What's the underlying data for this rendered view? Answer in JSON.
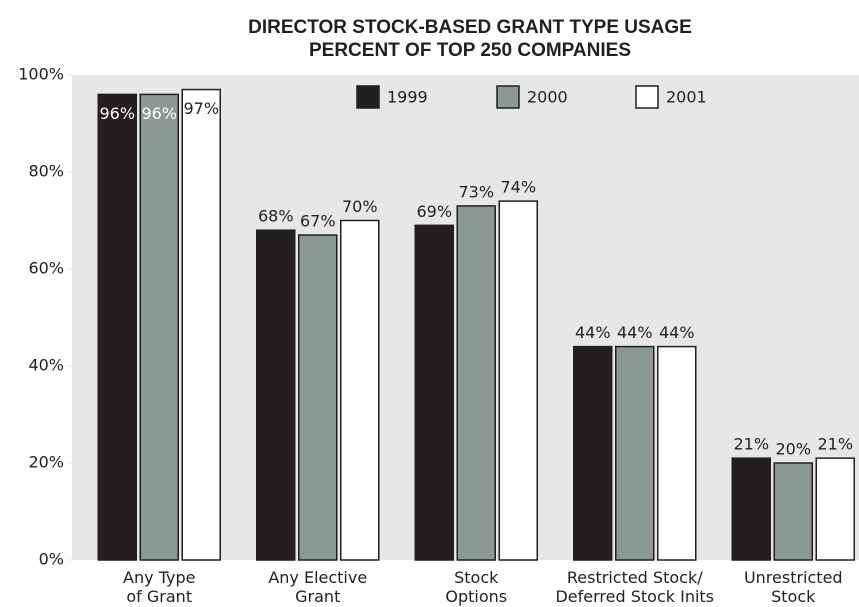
{
  "chart_data": {
    "type": "bar",
    "title": "DIRECTOR STOCK-BASED GRANT TYPE USAGE",
    "subtitle": "PERCENT OF TOP 250 COMPANIES",
    "categories": [
      "Any Type\nof Grant",
      "Any Elective\nGrant",
      "Stock\nOptions",
      "Restricted Stock/\nDeferred Stock Inits",
      "Unrestricted\nStock"
    ],
    "series": [
      {
        "name": "1999",
        "color": "#231f20",
        "values": [
          96,
          68,
          69,
          44,
          21
        ],
        "value_labels": [
          "96%",
          "68%",
          "69%",
          "44%",
          "21%"
        ]
      },
      {
        "name": "2000",
        "color": "#8b9995",
        "values": [
          96,
          67,
          73,
          44,
          20
        ],
        "value_labels": [
          "96%",
          "67%",
          "73%",
          "44%",
          "20%"
        ]
      },
      {
        "name": "2001",
        "color": "#ffffff",
        "values": [
          97,
          70,
          74,
          44,
          21
        ],
        "value_labels": [
          "97%",
          "70%",
          "74%",
          "44%",
          "21%"
        ]
      }
    ],
    "ylim": [
      0,
      100
    ],
    "yticks": [
      {
        "value": 0,
        "label": "0%"
      },
      {
        "value": 20,
        "label": "20%"
      },
      {
        "value": 40,
        "label": "40%"
      },
      {
        "value": 60,
        "label": "60%"
      },
      {
        "value": 80,
        "label": "80%"
      },
      {
        "value": 100,
        "label": "100%"
      }
    ],
    "legend": "top"
  }
}
